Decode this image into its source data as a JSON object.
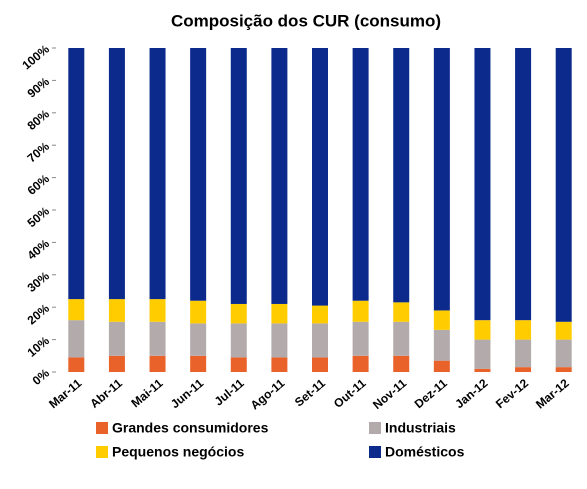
{
  "chart_data": {
    "type": "bar",
    "stacked": true,
    "title": "Composição dos CUR (consumo)",
    "categories": [
      "Mar-11",
      "Abr-11",
      "Mai-11",
      "Jun-11",
      "Jul-11",
      "Ago-11",
      "Set-11",
      "Out-11",
      "Nov-11",
      "Dez-11",
      "Jan-12",
      "Fev-12",
      "Mar-12"
    ],
    "series": [
      {
        "name": "Grandes consumidores",
        "color": "#e8622a",
        "values": [
          4.5,
          5,
          5,
          5,
          4.5,
          4.5,
          4.5,
          5,
          5,
          3.5,
          1,
          1.5,
          1.5
        ]
      },
      {
        "name": "Industriais",
        "color": "#b3abab",
        "values": [
          11.5,
          10.5,
          10.5,
          10,
          10.5,
          10.5,
          10.5,
          10.5,
          10.5,
          9.5,
          9,
          8.5,
          8.5
        ]
      },
      {
        "name": "Pequenos negócios",
        "color": "#ffcc00",
        "values": [
          6.5,
          7,
          7,
          7,
          6,
          6,
          5.5,
          6.5,
          6,
          6,
          6,
          6,
          5.5
        ]
      },
      {
        "name": "Domésticos",
        "color": "#0b2a8c",
        "values": [
          77.5,
          77.5,
          77.5,
          78,
          79,
          79,
          79.5,
          78,
          78.5,
          81,
          84,
          84,
          84.5
        ]
      }
    ],
    "ylim": [
      0,
      100
    ],
    "yticks": [
      {
        "value": 0,
        "label": "0%"
      },
      {
        "value": 10,
        "label": "10%"
      },
      {
        "value": 20,
        "label": "20%"
      },
      {
        "value": 30,
        "label": "30%"
      },
      {
        "value": 40,
        "label": "40%"
      },
      {
        "value": 50,
        "label": "50%"
      },
      {
        "value": 60,
        "label": "60%"
      },
      {
        "value": 70,
        "label": "70%"
      },
      {
        "value": 80,
        "label": "80%"
      },
      {
        "value": 90,
        "label": "90%"
      },
      {
        "value": 100,
        "label": "100%"
      }
    ],
    "grid": false
  }
}
